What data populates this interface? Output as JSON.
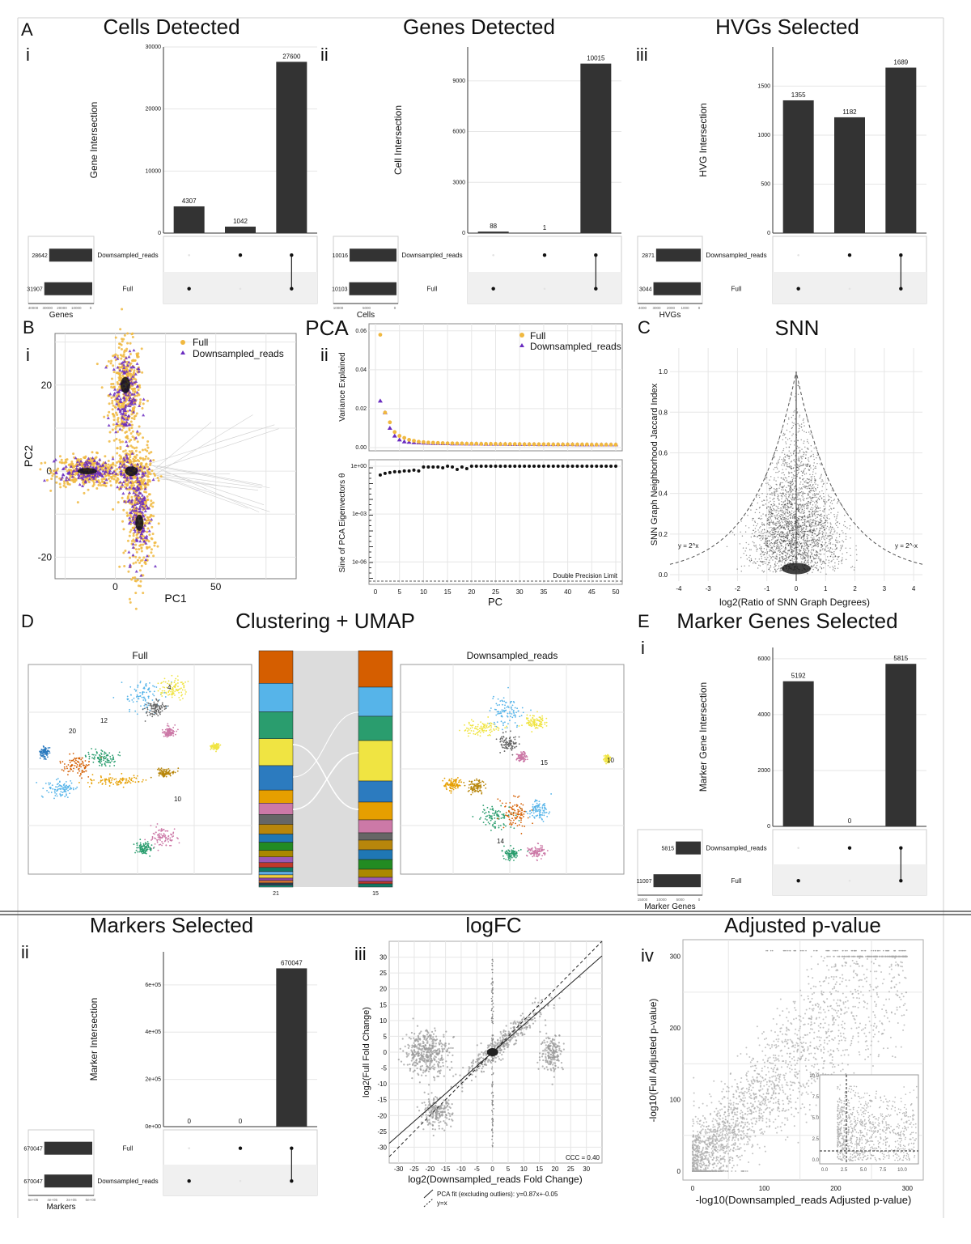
{
  "panel_letters": {
    "A": "A",
    "B": "B",
    "C": "C",
    "D": "D",
    "E": "E"
  },
  "titles": {
    "cells": "Cells Detected",
    "genes": "Genes Detected",
    "hvgs": "HVGs Selected",
    "pca": "PCA",
    "snn": "SNN",
    "clust": "Clustering + UMAP",
    "marker_genes": "Marker Genes Selected",
    "markers": "Markers Selected",
    "logfc": "logFC",
    "padj": "Adjusted p-value"
  },
  "colors": {
    "full": "#F0B840",
    "down": "#6A2CC0",
    "bar": "#333333"
  },
  "chart_data": [
    {
      "id": "A-i",
      "type": "bar",
      "roman": "i",
      "title": "Cells Detected",
      "ylabel": "Gene Intersection",
      "ylim": [
        0,
        30000
      ],
      "yticks": [
        0,
        10000,
        20000,
        30000
      ],
      "values": [
        4307,
        1042,
        27600
      ],
      "value_labels": [
        "4307",
        "1042",
        "27600"
      ],
      "sets": [
        "Downsampled_reads",
        "Full"
      ],
      "set_sizes": [
        28642,
        31907
      ],
      "set_size_labels": [
        "28642",
        "31907"
      ],
      "set_xlabel": "Genes",
      "set_ticks": [
        "40000",
        "30000",
        "20000",
        "10000",
        "0"
      ],
      "membership": [
        [
          false,
          true
        ],
        [
          true,
          false
        ],
        [
          true,
          true
        ]
      ]
    },
    {
      "id": "A-ii",
      "type": "bar",
      "roman": "ii",
      "title": "Genes Detected",
      "ylabel": "Cell Intersection",
      "ylim": [
        0,
        11000
      ],
      "yticks": [
        0,
        3000,
        6000,
        9000
      ],
      "values": [
        88,
        1,
        10015
      ],
      "value_labels": [
        "88",
        "1",
        "10015"
      ],
      "sets": [
        "Downsampled_reads",
        "Full"
      ],
      "set_sizes": [
        10016,
        10103
      ],
      "set_size_labels": [
        "10016",
        "10103"
      ],
      "set_xlabel": "Cells",
      "set_ticks": [
        "10000",
        "5000",
        "0"
      ],
      "membership": [
        [
          false,
          true
        ],
        [
          true,
          false
        ],
        [
          true,
          true
        ]
      ]
    },
    {
      "id": "A-iii",
      "type": "bar",
      "roman": "iii",
      "title": "HVGs Selected",
      "ylabel": "HVG Intersection",
      "ylim": [
        0,
        1900
      ],
      "yticks": [
        0,
        500,
        1000,
        1500
      ],
      "values": [
        1355,
        1182,
        1689
      ],
      "value_labels": [
        "1355",
        "1182",
        "1689"
      ],
      "sets": [
        "Downsampled_reads",
        "Full"
      ],
      "set_sizes": [
        2871,
        3044
      ],
      "set_size_labels": [
        "2871",
        "3044"
      ],
      "set_xlabel": "HVGs",
      "set_ticks": [
        "4000",
        "3000",
        "2000",
        "1000",
        "0"
      ],
      "membership": [
        [
          false,
          true
        ],
        [
          true,
          false
        ],
        [
          true,
          true
        ]
      ]
    },
    {
      "id": "B-i",
      "type": "scatter",
      "roman": "i",
      "xlabel": "PC1",
      "ylabel": "PC2",
      "xlim": [
        -30,
        90
      ],
      "ylim": [
        -25,
        32
      ],
      "xticks": [
        0,
        50
      ],
      "yticks": [
        -20,
        0,
        20
      ],
      "legend": [
        "Full",
        "Downsampled_reads"
      ],
      "series": [
        {
          "name": "Full"
        },
        {
          "name": "Downsampled_reads"
        }
      ]
    },
    {
      "id": "B-ii",
      "type": "scatter",
      "roman": "ii",
      "title": "PCA",
      "xlabel": "PC",
      "ylabel_top": "Variance Explained",
      "ylabel_bottom": "Sine of PCA Eigenvectors θ",
      "xticks": [
        0,
        5,
        10,
        15,
        20,
        25,
        30,
        35,
        40,
        45,
        50
      ],
      "top_yticks": [
        0,
        0.02,
        0.04,
        0.06
      ],
      "top_ytick_labels": [
        "0.00",
        "0.02",
        "0.04",
        "0.06"
      ],
      "bottom_ytick_labels": [
        "1e+00",
        "1e-03",
        "1e-06"
      ],
      "legend": [
        "Full",
        "Downsampled_reads"
      ],
      "annotation": "Double Precision Limit",
      "series": [
        {
          "name": "Full",
          "values": [
            0.058,
            0.018,
            0.013,
            0.008,
            0.006,
            0.005,
            0.004,
            0.0035,
            0.003,
            0.0028,
            0.0026,
            0.0025,
            0.0024,
            0.0023,
            0.0022,
            0.0022,
            0.0021,
            0.0021,
            0.002,
            0.002,
            0.002,
            0.0019,
            0.0019,
            0.0019,
            0.0019,
            0.0018,
            0.0018,
            0.0018,
            0.0018,
            0.0018,
            0.0017,
            0.0017,
            0.0017,
            0.0017,
            0.0017,
            0.0017,
            0.0016,
            0.0016,
            0.0016,
            0.0016,
            0.0016,
            0.0016,
            0.0016,
            0.0016,
            0.0015,
            0.0015,
            0.0015,
            0.0015,
            0.0015,
            0.0015
          ]
        },
        {
          "name": "Downsampled_reads",
          "values": [
            0.024,
            0.018,
            0.01,
            0.006,
            0.004,
            0.003,
            0.0028,
            0.0026,
            0.0025,
            0.0024,
            0.0023,
            0.0022,
            0.0022,
            0.0021,
            0.0021,
            0.002,
            0.002,
            0.002,
            0.0019,
            0.0019,
            0.0019,
            0.0019,
            0.0018,
            0.0018,
            0.0018,
            0.0018,
            0.0018,
            0.0017,
            0.0017,
            0.0017,
            0.0017,
            0.0017,
            0.0017,
            0.0016,
            0.0016,
            0.0016,
            0.0016,
            0.0016,
            0.0016,
            0.0016,
            0.0016,
            0.0015,
            0.0015,
            0.0015,
            0.0015,
            0.0015,
            0.0015,
            0.0015,
            0.0015,
            0.0015
          ]
        },
        {
          "name": "Sine",
          "values": [
            -0.55,
            -0.45,
            -0.4,
            -0.35,
            -0.35,
            -0.3,
            -0.3,
            -0.25,
            -0.3,
            -0.05,
            -0.05,
            -0.05,
            -0.05,
            -0.1,
            0,
            -0.05,
            -0.2,
            -0.05,
            -0.15,
            0,
            0,
            0,
            0,
            0,
            0,
            0,
            0,
            0,
            0,
            0,
            0,
            0,
            0,
            0,
            0,
            0,
            0,
            0,
            0,
            0,
            0,
            0,
            0,
            0,
            0,
            0,
            0,
            0,
            0,
            0
          ]
        }
      ]
    },
    {
      "id": "C",
      "type": "scatter",
      "title": "SNN",
      "xlabel": "log2(Ratio of SNN Graph Degrees)",
      "ylabel": "SNN Graph Neighborhood Jaccard Index",
      "xlim": [
        -4.3,
        4.3
      ],
      "ylim": [
        0,
        1.1
      ],
      "xticks": [
        -4,
        -3,
        -2,
        -1,
        0,
        1,
        2,
        3,
        4
      ],
      "yticks": [
        0,
        0.2,
        0.4,
        0.6,
        0.8,
        1.0
      ],
      "ytick_labels": [
        "0.0",
        "0.2",
        "0.4",
        "0.6",
        "0.8",
        "1.0"
      ],
      "curve_labels": [
        "y = 2^x",
        "y = 2^-x"
      ]
    },
    {
      "id": "D",
      "type": "scatter",
      "title": "Clustering + UMAP",
      "left_label": "Full",
      "right_label": "Downsampled_reads",
      "left_clusters": 21,
      "right_clusters": 15,
      "left_count_label": "21",
      "right_count_label": "15",
      "cluster_labels_full": [
        "20",
        "12",
        "4",
        "10"
      ],
      "cluster_labels_down": [
        "15",
        "14",
        "10"
      ]
    },
    {
      "id": "E-i",
      "type": "bar",
      "roman": "i",
      "title": "Marker Genes Selected",
      "ylabel": "Marker Gene Intersection",
      "ylim": [
        0,
        6400
      ],
      "yticks": [
        0,
        2000,
        4000,
        6000
      ],
      "values": [
        5192,
        0,
        5815
      ],
      "value_labels": [
        "5192",
        "0",
        "5815"
      ],
      "sets": [
        "Downsampled_reads",
        "Full"
      ],
      "set_sizes": [
        5815,
        11007
      ],
      "set_size_labels": [
        "5815",
        "11007"
      ],
      "set_xlabel": "Marker Genes",
      "set_ticks": [
        "15000",
        "10000",
        "5000",
        "0"
      ],
      "membership": [
        [
          false,
          true
        ],
        [
          true,
          false
        ],
        [
          true,
          true
        ]
      ]
    },
    {
      "id": "E-ii",
      "type": "bar",
      "roman": "ii",
      "title": "Markers Selected",
      "ylabel": "Marker Intersection",
      "ylim": [
        0,
        740000
      ],
      "yticks": [
        0,
        200000,
        400000,
        600000
      ],
      "ytick_labels": [
        "0e+00",
        "2e+05",
        "4e+05",
        "6e+05"
      ],
      "values": [
        0,
        0,
        670047
      ],
      "value_labels": [
        "0",
        "0",
        "670047"
      ],
      "sets": [
        "Full",
        "Downsampled_reads"
      ],
      "set_sizes": [
        670047,
        670047
      ],
      "set_size_labels": [
        "670047",
        "670047"
      ],
      "set_xlabel": "Markers",
      "set_ticks": [
        "6e+05",
        "4e+05",
        "2e+05",
        "0e+00"
      ],
      "membership": [
        [
          false,
          true
        ],
        [
          true,
          false
        ],
        [
          true,
          true
        ]
      ]
    },
    {
      "id": "E-iii",
      "type": "scatter",
      "roman": "iii",
      "title": "logFC",
      "xlabel": "log2(Downsampled_reads Fold Change)",
      "ylabel": "log2(Full Fold Change)",
      "xlim": [
        -33,
        35
      ],
      "ylim": [
        -35,
        35
      ],
      "xticks": [
        -30,
        -25,
        -20,
        -15,
        -10,
        -5,
        0,
        5,
        10,
        15,
        20,
        25,
        30
      ],
      "yticks": [
        -30,
        -25,
        -20,
        -15,
        -10,
        -5,
        0,
        5,
        10,
        15,
        20,
        25,
        30
      ],
      "annotation": "CCC = 0.40",
      "fit_slope": 0.87,
      "fit_intercept": -0.05,
      "legend": [
        "PCA fit (excluding outliers): y=0.87x+-0.05",
        "y=x"
      ]
    },
    {
      "id": "E-iv",
      "type": "scatter",
      "roman": "iv",
      "title": "Adjusted p-value",
      "xlabel": "-log10(Downsampled_reads Adjusted p-value)",
      "ylabel": "-log10(Full Adjusted p-value)",
      "xlim": [
        0,
        320
      ],
      "ylim": [
        0,
        320
      ],
      "xticks": [
        0,
        100,
        200,
        300
      ],
      "yticks": [
        0,
        100,
        200,
        300
      ],
      "inset_ticks": [
        "0.0",
        "2.5",
        "5.0",
        "7.5",
        "10.0"
      ]
    }
  ]
}
